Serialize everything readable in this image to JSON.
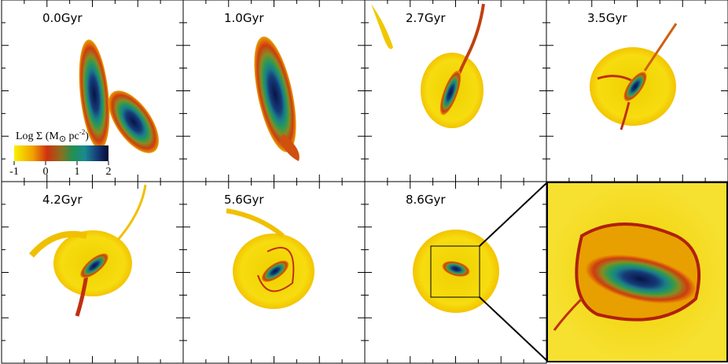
{
  "panels": [
    "0.0Gyr",
    "1.0Gyr",
    "2.7Gyr",
    "3.5Gyr",
    "4.2Gyr",
    "5.6Gyr",
    "8.6Gyr"
  ],
  "colorbar": {
    "label": "Log Σ (M",
    "label_sun": "⊙",
    "label_unit": " pc",
    "label_sup": "-2",
    "label_end": ")",
    "ticks": [
      -1,
      0,
      1,
      2
    ]
  }
}
